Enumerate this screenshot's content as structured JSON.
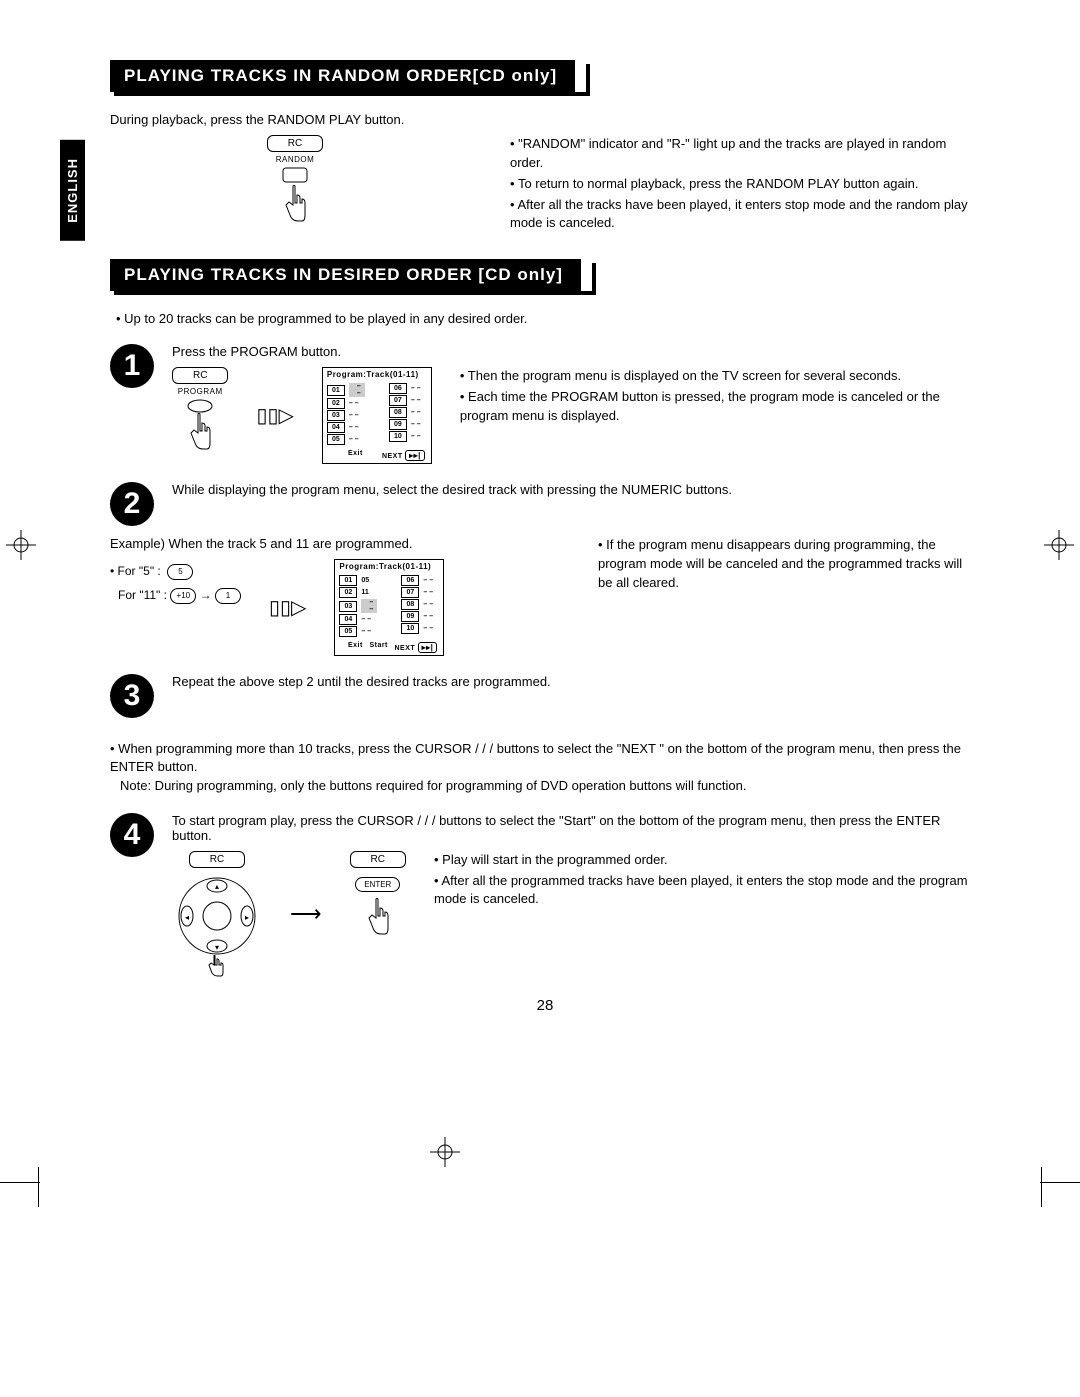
{
  "language_tab": "ENGLISH",
  "page_number": "28",
  "section1": {
    "title": "PLAYING TRACKS IN RANDOM ORDER[CD only]",
    "intro": "During playback, press the RANDOM PLAY button.",
    "rc_label": "RC",
    "button_label": "RANDOM",
    "bullets": [
      "\"RANDOM\" indicator and \"R-\" light up and the tracks are played in random order.",
      "To return to normal playback, press the RANDOM PLAY button again.",
      "After all the tracks have been played, it enters stop mode and the random play mode is canceled."
    ]
  },
  "section2": {
    "title": "PLAYING TRACKS IN DESIRED ORDER [CD only]",
    "intro": "Up to 20 tracks can be programmed to be played in any desired order.",
    "step1": {
      "text": "Press the PROGRAM button.",
      "rc_label": "RC",
      "button_label": "PROGRAM",
      "table_title": "Program:Track(01-11)",
      "left_nums": [
        "01",
        "02",
        "03",
        "04",
        "05"
      ],
      "right_nums": [
        "06",
        "07",
        "08",
        "09",
        "10"
      ],
      "foot_exit": "Exit",
      "foot_next": "NEXT",
      "bullets": [
        "Then the program menu is displayed on the TV screen for several seconds.",
        "Each time the PROGRAM button is pressed, the program mode is canceled or the program menu is displayed."
      ]
    },
    "step2": {
      "text": "While displaying the program menu, select the desired track with pressing the NUMERIC buttons.",
      "example_label": "Example) When the track 5 and 11 are programmed.",
      "for5_label": "For \"5\" :",
      "for11_label": "For \"11\" :",
      "btn5": "5",
      "btn10": "+10",
      "btn1": "1",
      "table_title": "Program:Track(01-11)",
      "left_nums": [
        "01",
        "02",
        "03",
        "04",
        "05"
      ],
      "left_vals": [
        "05",
        "11",
        "– –",
        "– –",
        "– –"
      ],
      "right_nums": [
        "06",
        "07",
        "08",
        "09",
        "10"
      ],
      "foot_exit": "Exit",
      "foot_start": "Start",
      "foot_next": "NEXT",
      "bullets": [
        "If the program menu disappears during programming, the program mode will be canceled and the programmed tracks will be all cleared."
      ]
    },
    "step3": {
      "text": "Repeat the above step 2 until the desired tracks are programmed."
    },
    "note_block": {
      "line1": "When programming more than 10 tracks, press the CURSOR    /  /  /    buttons to select the \"NEXT       \" on the bottom of the program menu, then press the ENTER button.",
      "line2": "Note: During programming, only the buttons required for programming of DVD operation buttons will function."
    },
    "step4": {
      "text": "To start program play, press the CURSOR    /  /  /    buttons to select the \"Start\" on the bottom of the program menu, then press the ENTER button.",
      "rc_label": "RC",
      "enter_label": "ENTER",
      "bullets": [
        "Play will start in the programmed order.",
        "After all the programmed tracks have been played, it enters the stop mode and the program mode is canceled."
      ]
    }
  }
}
